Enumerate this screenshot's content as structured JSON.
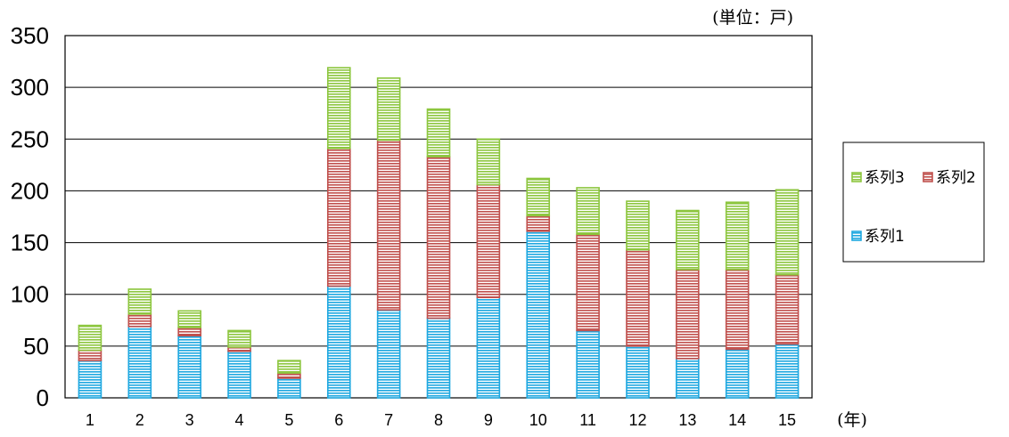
{
  "chart_data": {
    "type": "bar",
    "stacked": true,
    "unit_label": "(単位：戸)",
    "x_unit_label": "(年)",
    "categories": [
      "1",
      "2",
      "3",
      "4",
      "5",
      "6",
      "7",
      "8",
      "9",
      "10",
      "11",
      "12",
      "13",
      "14",
      "15"
    ],
    "series": [
      {
        "name": "系列1",
        "color": "#1fa8e0",
        "values": [
          36,
          69,
          60,
          45,
          19,
          108,
          85,
          77,
          97,
          161,
          65,
          50,
          38,
          47,
          52
        ]
      },
      {
        "name": "系列2",
        "color": "#c0504d",
        "values": [
          10,
          12,
          8,
          4,
          5,
          133,
          164,
          156,
          109,
          15,
          93,
          93,
          86,
          77,
          67
        ]
      },
      {
        "name": "系列3",
        "color": "#8dc63f",
        "values": [
          24,
          24,
          16,
          16,
          12,
          78,
          60,
          46,
          44,
          36,
          45,
          47,
          57,
          65,
          82
        ]
      }
    ],
    "ylim": [
      0,
      350
    ],
    "yticks": [
      0,
      50,
      100,
      150,
      200,
      250,
      300,
      350
    ],
    "grid": true,
    "legend": "right"
  }
}
